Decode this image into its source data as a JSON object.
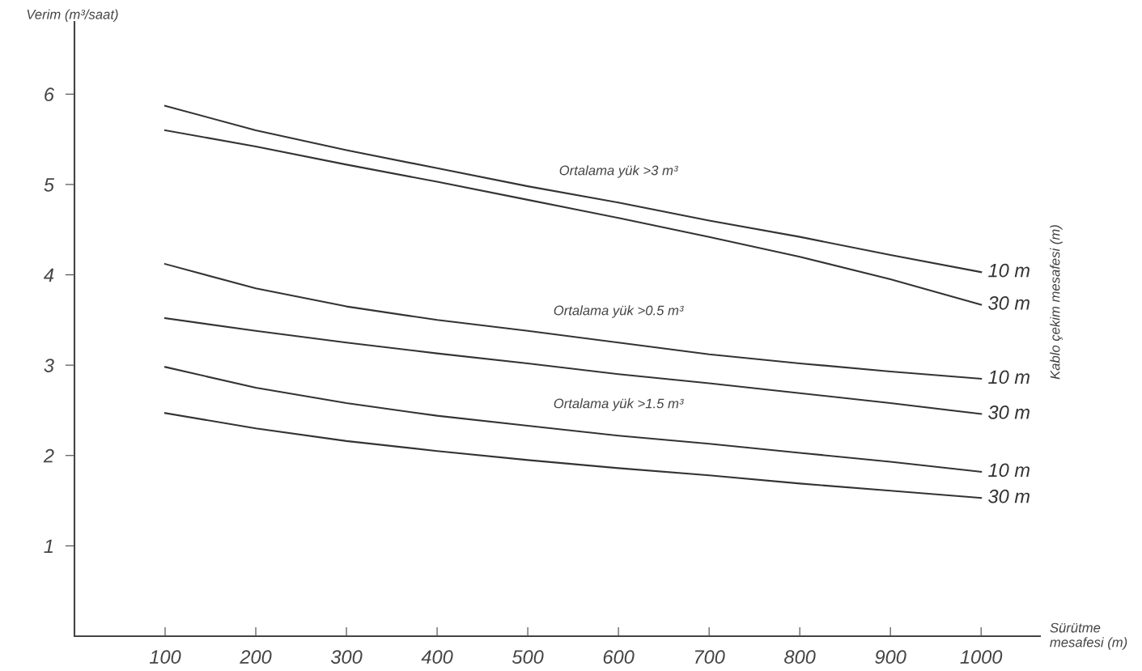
{
  "chart_data": {
    "type": "line",
    "xlabel": "Sürütme\nmesafesi (m)",
    "ylabel": "Verim (m³/saat)",
    "y2label": "Kablo çekim mesafesi (m)",
    "x": [
      100,
      200,
      300,
      400,
      500,
      600,
      700,
      800,
      900,
      1000
    ],
    "series": [
      {
        "name": "10 m",
        "color": "#333333",
        "values": [
          5.87,
          5.6,
          5.38,
          5.18,
          4.98,
          4.8,
          4.6,
          4.42,
          4.22,
          4.03
        ]
      },
      {
        "name": "30 m",
        "color": "#333333",
        "values": [
          5.6,
          5.42,
          5.22,
          5.03,
          4.83,
          4.63,
          4.42,
          4.2,
          3.95,
          3.67
        ]
      },
      {
        "name": "10 m",
        "color": "#333333",
        "values": [
          4.12,
          3.85,
          3.65,
          3.5,
          3.38,
          3.25,
          3.12,
          3.02,
          2.93,
          2.85
        ]
      },
      {
        "name": "30 m",
        "color": "#333333",
        "values": [
          3.52,
          3.38,
          3.25,
          3.13,
          3.02,
          2.9,
          2.8,
          2.69,
          2.58,
          2.46
        ]
      },
      {
        "name": "10 m",
        "color": "#333333",
        "values": [
          2.98,
          2.75,
          2.58,
          2.44,
          2.33,
          2.22,
          2.13,
          2.03,
          1.93,
          1.82
        ]
      },
      {
        "name": "30 m",
        "color": "#333333",
        "values": [
          2.47,
          2.3,
          2.16,
          2.05,
          1.95,
          1.86,
          1.78,
          1.69,
          1.61,
          1.53
        ]
      }
    ],
    "annotations": [
      "Ortalama yük >3 m³",
      "Ortalama yük >0.5 m³",
      "Ortalama yük >1.5 m³"
    ],
    "xlim": [
      0,
      1065
    ],
    "ylim": [
      0,
      6.8
    ],
    "xticks": [
      100,
      200,
      300,
      400,
      500,
      600,
      700,
      800,
      900,
      1000
    ],
    "yticks": [
      1,
      2,
      3,
      4,
      5,
      6
    ],
    "grid": false,
    "legend": false,
    "marker": "none",
    "line_style": "solid"
  }
}
